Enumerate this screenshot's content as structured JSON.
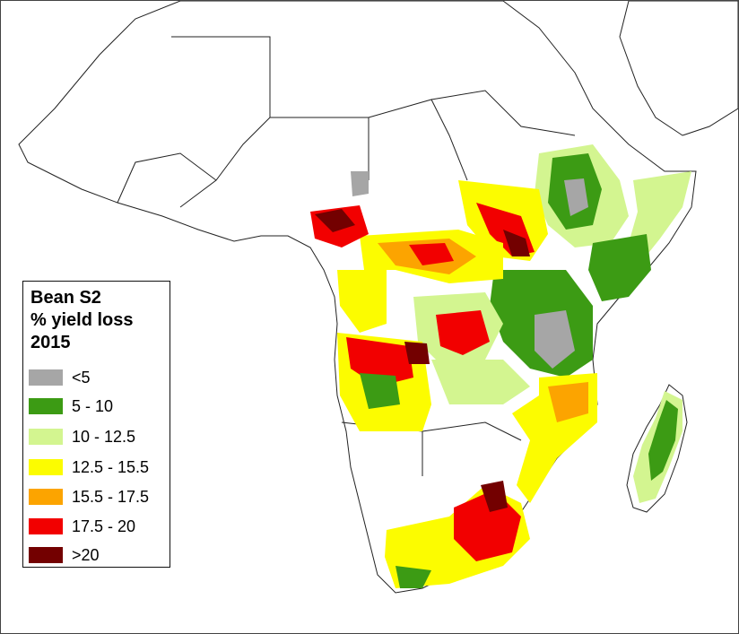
{
  "legend": {
    "title_line1": "Bean S2",
    "title_line2": "% yield loss",
    "title_line3": "2015",
    "classes": [
      {
        "label": "<5",
        "color": "#a6a6a6"
      },
      {
        "label": "5 - 10",
        "color": "#3c9b14"
      },
      {
        "label": "10 - 12.5",
        "color": "#d3f590"
      },
      {
        "label": "12.5 - 15.5",
        "color": "#fcfc00"
      },
      {
        "label": "15.5 - 17.5",
        "color": "#fca400"
      },
      {
        "label": "17.5 - 20",
        "color": "#f20000"
      },
      {
        "label": ">20",
        "color": "#730000"
      }
    ]
  }
}
